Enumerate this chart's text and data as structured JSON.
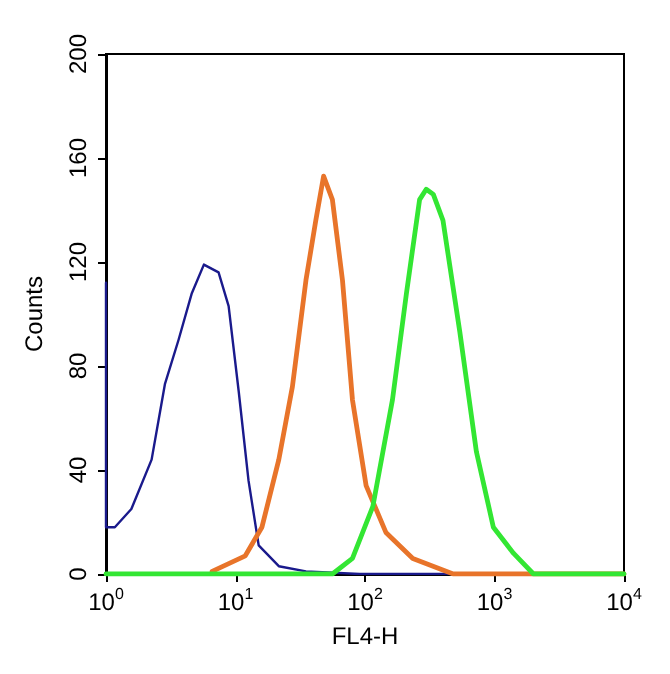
{
  "chart_data": {
    "type": "line",
    "xlabel": "FL4-H",
    "ylabel": "Counts",
    "log": "x",
    "grid": false,
    "marker": "none",
    "line_style": "solid",
    "xlim": [
      1,
      10000
    ],
    "ylim": [
      0,
      200
    ],
    "xticks": [
      {
        "value": 1,
        "label": "10$^{0}$"
      },
      {
        "value": 10,
        "label": "10$^{1}$"
      },
      {
        "value": 100,
        "label": "10$^{2}$"
      },
      {
        "value": 1000,
        "label": "10$^{3}$"
      },
      {
        "value": 10000,
        "label": "10$^{4}$"
      }
    ],
    "yticks": [
      0,
      40,
      80,
      120,
      160,
      200
    ],
    "series": [
      {
        "color": "#1a1a8c",
        "x": [
          1,
          1,
          1.17,
          1.57,
          2.25,
          2.85,
          3.63,
          4.6,
          5.7,
          7.4,
          8.85,
          10.6,
          12.6,
          15.1,
          21.6,
          35,
          91,
          10000
        ],
        "values": [
          112,
          18,
          18,
          25,
          44,
          73,
          90,
          108,
          119,
          116,
          103,
          70,
          36,
          11,
          3,
          1,
          0,
          0
        ]
      },
      {
        "color": "#e8742a",
        "x": [
          6.6,
          11.9,
          16,
          21.6,
          27.5,
          35,
          41.7,
          47.9,
          56,
          67,
          80,
          102,
          145,
          234,
          480,
          10000
        ],
        "values": [
          1,
          7,
          18,
          44,
          72,
          113,
          136,
          153,
          144,
          113,
          67,
          34,
          16,
          6,
          0,
          0
        ]
      },
      {
        "color": "#33e633",
        "x": [
          1,
          56,
          80,
          115,
          163,
          209,
          264,
          297,
          337,
          400,
          540,
          725,
          980,
          1400,
          2000,
          10000
        ],
        "values": [
          0,
          0,
          6,
          26,
          67,
          108,
          144,
          148,
          146,
          136,
          93,
          47,
          18,
          8,
          0,
          0
        ]
      }
    ]
  }
}
